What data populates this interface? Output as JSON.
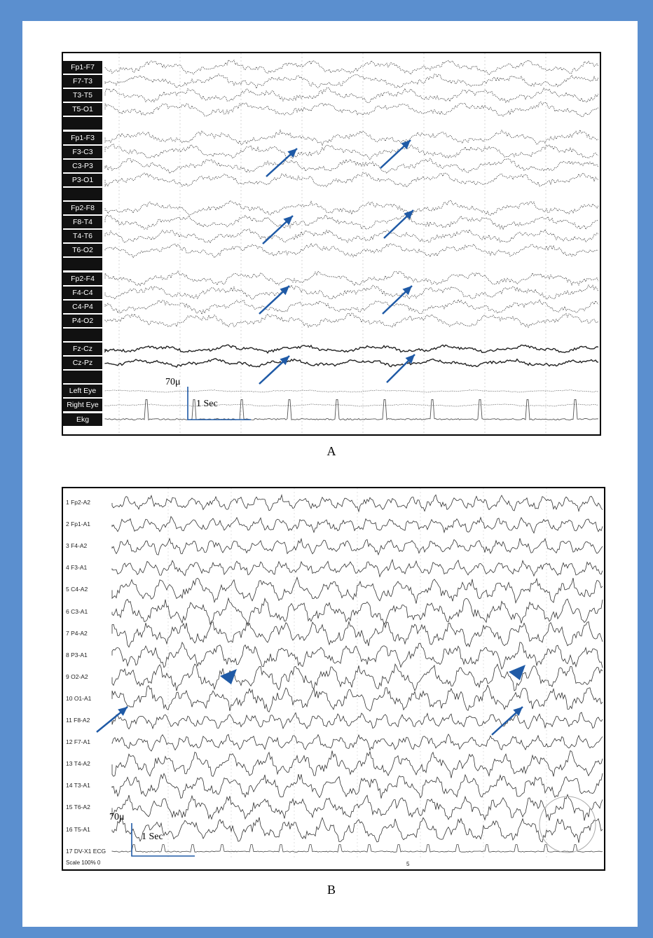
{
  "panel_a": {
    "caption": "A",
    "channels": [
      "Fp1-F7",
      "F7-T3",
      "T3-T5",
      "T5-O1",
      "",
      "Fp1-F3",
      "F3-C3",
      "C3-P3",
      "P3-O1",
      "",
      "Fp2-F8",
      "F8-T4",
      "T4-T6",
      "T6-O2",
      "",
      "Fp2-F4",
      "F4-C4",
      "C4-P4",
      "P4-O2",
      "",
      "Fz-Cz",
      "Cz-Pz",
      "",
      "Left Eye",
      "Right Eye",
      "Ekg"
    ],
    "scale_amplitude": "70μ",
    "scale_time": "1 Sec",
    "arrow_color": "#1f5aa6"
  },
  "panel_b": {
    "caption": "B",
    "channels": [
      "1  Fp2-A2",
      "2  Fp1-A1",
      "3  F4-A2",
      "4  F3-A1",
      "5  C4-A2",
      "6  C3-A1",
      "7  P4-A2",
      "8  P3-A1",
      "9  O2-A2",
      "10  O1-A1",
      "11  F8-A2",
      "12  F7-A1",
      "13  T4-A2",
      "14  T3-A1",
      "15  T6-A2",
      "16  T5-A1",
      "17  DV-X1  ECG"
    ],
    "footer_scale": "Scale 100%  0",
    "footer_mark": "5",
    "scale_amplitude": "70μ",
    "scale_time": "1 Sec",
    "arrow_color": "#1f5aa6"
  },
  "colors": {
    "frame": "#5b8fcf",
    "trace": "#333333"
  }
}
